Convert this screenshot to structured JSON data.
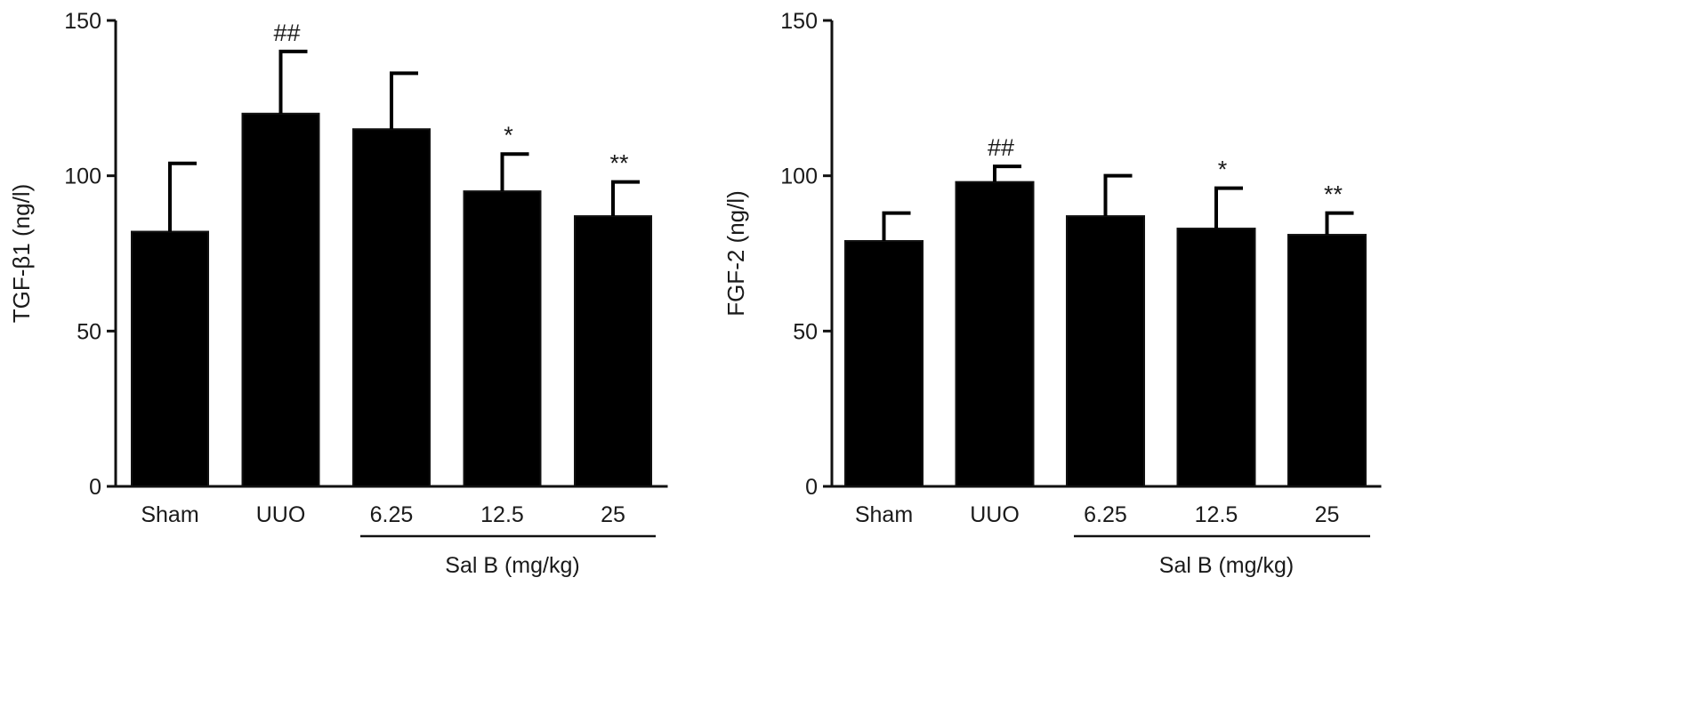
{
  "chart_data": [
    {
      "type": "bar",
      "ylabel": "TGF-β1 (ng/l)",
      "ylim": [
        0,
        150
      ],
      "yticks": [
        0,
        50,
        100,
        150
      ],
      "categories": [
        "Sham",
        "UUO",
        "6.25",
        "12.5",
        "25"
      ],
      "values": [
        82,
        120,
        115,
        95,
        87
      ],
      "errors": [
        22,
        20,
        18,
        12,
        11
      ],
      "annotations": [
        "",
        "##",
        "",
        "*",
        "**"
      ],
      "group_label": "Sal B (mg/kg)",
      "bar_color": "#000000"
    },
    {
      "type": "bar",
      "ylabel": "FGF-2 (ng/l)",
      "ylim": [
        0,
        150
      ],
      "yticks": [
        0,
        50,
        100,
        150
      ],
      "categories": [
        "Sham",
        "UUO",
        "6.25",
        "12.5",
        "25"
      ],
      "values": [
        79,
        98,
        87,
        83,
        81
      ],
      "errors": [
        9,
        5,
        13,
        13,
        7
      ],
      "annotations": [
        "",
        "##",
        "",
        "*",
        "**"
      ],
      "group_label": "Sal B (mg/kg)",
      "bar_color": "#000000"
    }
  ]
}
